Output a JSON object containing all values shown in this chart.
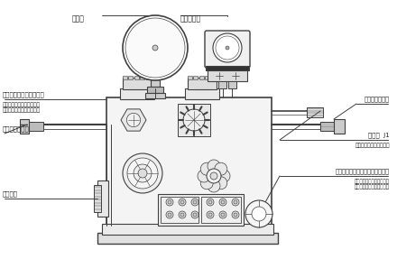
{
  "background_color": "#ffffff",
  "line_color": "#404040",
  "text_color": "#202020",
  "labels": {
    "pressure_gauge": "压力表",
    "pressure_controller": "压力控制器",
    "accumulator_with_bladder": "接液压囊有杆腔",
    "shutoff_valve": "截止阀  J1",
    "shutoff_desc": "用于卸压及测定充氮压力",
    "relief_valve": "溢流阀（控制液压系统最高压力）",
    "relief_cw": "顺时针调节溢流阀压力升高",
    "relief_ccw": "逆时针调节溢流阀压力降低",
    "throttle_valve": "节流阀（调节开阀速度）",
    "throttle_cw": "顺时针调节节流阀速度变慢",
    "throttle_ccw": "逆时针调节节流阀速度变快",
    "accumulator_no_bladder": "接液压囊无杆腔",
    "manual_pump": "手动油泵"
  },
  "fig_width": 4.4,
  "fig_height": 2.87,
  "dpi": 100
}
